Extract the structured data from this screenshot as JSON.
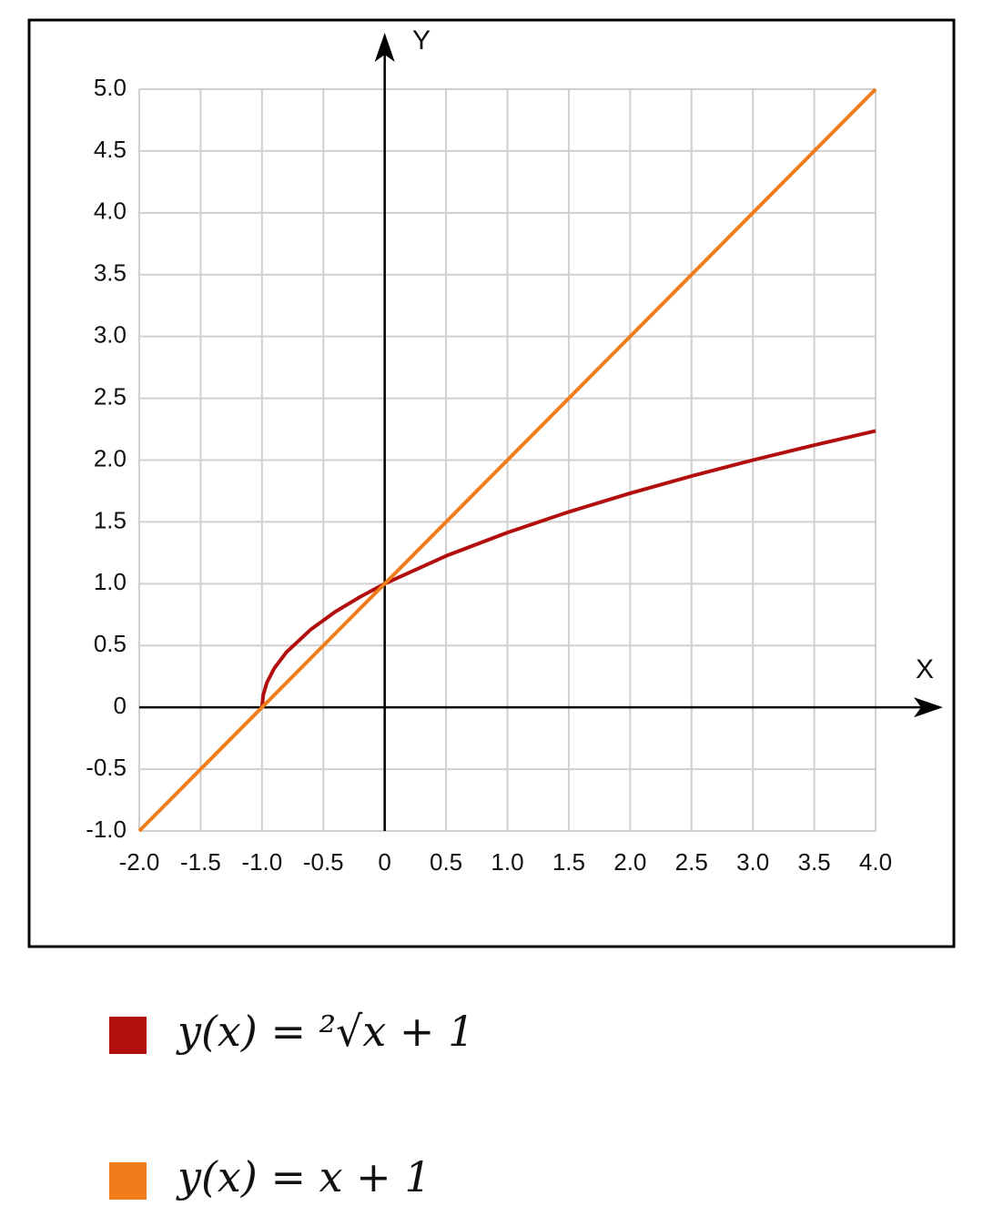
{
  "chart_data": {
    "type": "line",
    "xlabel": "X",
    "ylabel": "Y",
    "xlim": [
      -2,
      4
    ],
    "ylim": [
      -1,
      5
    ],
    "xticks": [
      {
        "value": -2,
        "label": "-2.0"
      },
      {
        "value": -1.5,
        "label": "-1.5"
      },
      {
        "value": -1,
        "label": "-1.0"
      },
      -0.5,
      0,
      0.5,
      {
        "value": 1,
        "label": "1.0"
      },
      1.5,
      {
        "value": 2,
        "label": "2.0"
      },
      2.5,
      {
        "value": 3,
        "label": "3.0"
      },
      3.5,
      {
        "value": 4,
        "label": "4.0"
      }
    ],
    "yticks": [
      {
        "value": -1,
        "label": "-1.0"
      },
      -0.5,
      0,
      0.5,
      {
        "value": 1,
        "label": "1.0"
      },
      1.5,
      {
        "value": 2,
        "label": "2.0"
      },
      2.5,
      {
        "value": 3,
        "label": "3.0"
      },
      3.5,
      {
        "value": 4,
        "label": "4.0"
      },
      4.5,
      {
        "value": 5,
        "label": "5.0"
      }
    ],
    "grid": true,
    "series": [
      {
        "name": "y(x) = ²√x + 1",
        "color": "#b20e0e",
        "x": [
          -1,
          -0.99,
          -0.96,
          -0.9,
          -0.8,
          -0.6,
          -0.4,
          -0.2,
          0,
          0.5,
          1,
          1.5,
          2,
          2.5,
          3,
          3.5,
          4
        ],
        "values": [
          0,
          0.1,
          0.2,
          0.316,
          0.447,
          0.632,
          0.775,
          0.894,
          1,
          1.225,
          1.414,
          1.581,
          1.732,
          1.871,
          2,
          2.121,
          2.236
        ]
      },
      {
        "name": "y(x) = x + 1",
        "color": "#f07d1a",
        "x": [
          -2,
          4
        ],
        "values": [
          -1,
          5
        ]
      }
    ]
  }
}
